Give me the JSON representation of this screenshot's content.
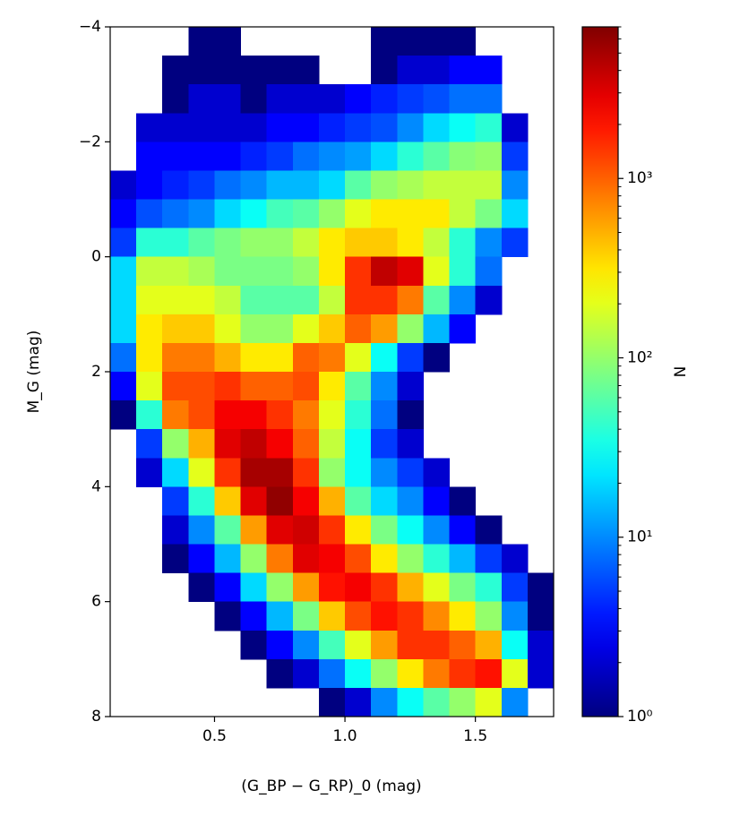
{
  "chart_data": {
    "type": "hist2d",
    "x_label": "(G_BP − G_RP)_0 (mag)",
    "y_label": "M_G (mag)",
    "colorbar_label": "N",
    "colormap": "jet",
    "log_color": true,
    "clim": [
      1,
      7000
    ],
    "cticks": [
      {
        "value": 1,
        "label": "10⁰"
      },
      {
        "value": 10,
        "label": "10¹"
      },
      {
        "value": 100,
        "label": "10²"
      },
      {
        "value": 1000,
        "label": "10³"
      }
    ],
    "xlim": [
      0.1,
      1.8
    ],
    "ylim": [
      8,
      -4
    ],
    "xticks": [
      0.5,
      {
        "value": 1.0,
        "label": "1.0"
      },
      1.5
    ],
    "yticks": [
      {
        "value": -4,
        "label": "−4"
      },
      {
        "value": -2,
        "label": "−2"
      },
      0,
      2,
      4,
      6,
      8
    ],
    "x_bins": [
      0.1,
      0.2,
      0.3,
      0.4,
      0.5,
      0.6,
      0.7,
      0.8,
      0.9,
      1.0,
      1.1,
      1.2,
      1.3,
      1.4,
      1.5,
      1.6,
      1.7,
      1.8
    ],
    "y_bins": [
      -4,
      -3.5,
      -3,
      -2.5,
      -2,
      -1.5,
      -1,
      -0.5,
      0,
      0.5,
      1,
      1.5,
      2,
      2.5,
      3,
      3.5,
      4,
      4.5,
      5,
      5.5,
      6,
      6.5,
      7,
      7.5,
      8
    ],
    "counts": [
      [
        null,
        null,
        null,
        1,
        1,
        null,
        null,
        null,
        null,
        null,
        1,
        1,
        1,
        1,
        null,
        null,
        null
      ],
      [
        null,
        null,
        1,
        1,
        1,
        1,
        1,
        1,
        null,
        null,
        1,
        2,
        2,
        3,
        3,
        null,
        null
      ],
      [
        null,
        null,
        1,
        2,
        2,
        1,
        2,
        2,
        2,
        3,
        4,
        5,
        6,
        8,
        8,
        null,
        null
      ],
      [
        null,
        2,
        2,
        2,
        2,
        2,
        3,
        3,
        4,
        5,
        6,
        10,
        20,
        30,
        40,
        2,
        null
      ],
      [
        null,
        3,
        3,
        3,
        3,
        4,
        5,
        8,
        10,
        12,
        20,
        40,
        60,
        90,
        100,
        5,
        null
      ],
      [
        2,
        3,
        4,
        5,
        8,
        10,
        15,
        15,
        20,
        60,
        100,
        120,
        150,
        150,
        150,
        10,
        null
      ],
      [
        3,
        6,
        8,
        10,
        20,
        30,
        50,
        60,
        100,
        200,
        300,
        300,
        300,
        150,
        80,
        20,
        null
      ],
      [
        5,
        40,
        40,
        60,
        80,
        100,
        100,
        150,
        300,
        400,
        400,
        300,
        150,
        40,
        10,
        5,
        null
      ],
      [
        20,
        150,
        150,
        120,
        80,
        80,
        80,
        100,
        300,
        1500,
        4000,
        3000,
        200,
        40,
        8,
        null,
        null
      ],
      [
        20,
        200,
        200,
        200,
        150,
        60,
        60,
        60,
        150,
        1500,
        1500,
        800,
        60,
        10,
        2,
        null,
        null
      ],
      [
        20,
        300,
        400,
        400,
        200,
        100,
        100,
        200,
        400,
        1000,
        600,
        100,
        15,
        3,
        null,
        null,
        null
      ],
      [
        8,
        300,
        800,
        800,
        500,
        300,
        300,
        1000,
        800,
        200,
        30,
        5,
        1,
        null,
        null,
        null,
        null
      ],
      [
        3,
        200,
        1200,
        1200,
        1500,
        1000,
        1000,
        1200,
        300,
        60,
        10,
        2,
        null,
        null,
        null,
        null,
        null
      ],
      [
        1,
        40,
        800,
        1200,
        2500,
        2500,
        1500,
        800,
        200,
        40,
        8,
        1,
        null,
        null,
        null,
        null,
        null
      ],
      [
        null,
        5,
        100,
        500,
        3000,
        4000,
        2500,
        1000,
        150,
        30,
        5,
        2,
        null,
        null,
        null,
        null,
        null
      ],
      [
        null,
        2,
        20,
        200,
        1500,
        5000,
        5000,
        1500,
        100,
        30,
        10,
        5,
        2,
        null,
        null,
        null,
        null
      ],
      [
        null,
        null,
        5,
        40,
        400,
        3000,
        6000,
        2500,
        500,
        60,
        20,
        10,
        3,
        1,
        null,
        null,
        null
      ],
      [
        null,
        null,
        2,
        10,
        60,
        600,
        3000,
        3500,
        1500,
        300,
        80,
        30,
        10,
        3,
        1,
        null,
        null
      ],
      [
        null,
        null,
        1,
        3,
        15,
        100,
        800,
        3000,
        2500,
        1200,
        300,
        100,
        40,
        15,
        5,
        2,
        null
      ],
      [
        null,
        null,
        null,
        1,
        3,
        20,
        100,
        600,
        2000,
        2500,
        1500,
        500,
        200,
        80,
        40,
        5,
        1
      ],
      [
        null,
        null,
        null,
        null,
        1,
        3,
        15,
        80,
        400,
        1200,
        2000,
        1500,
        700,
        300,
        100,
        10,
        1
      ],
      [
        null,
        null,
        null,
        null,
        null,
        1,
        3,
        10,
        50,
        200,
        600,
        1500,
        1500,
        1000,
        500,
        30,
        2
      ],
      [
        null,
        null,
        null,
        null,
        null,
        null,
        1,
        2,
        8,
        30,
        100,
        300,
        800,
        1500,
        2000,
        200,
        2
      ],
      [
        null,
        null,
        null,
        null,
        null,
        null,
        null,
        null,
        1,
        2,
        10,
        30,
        60,
        100,
        200,
        10,
        null
      ]
    ]
  }
}
